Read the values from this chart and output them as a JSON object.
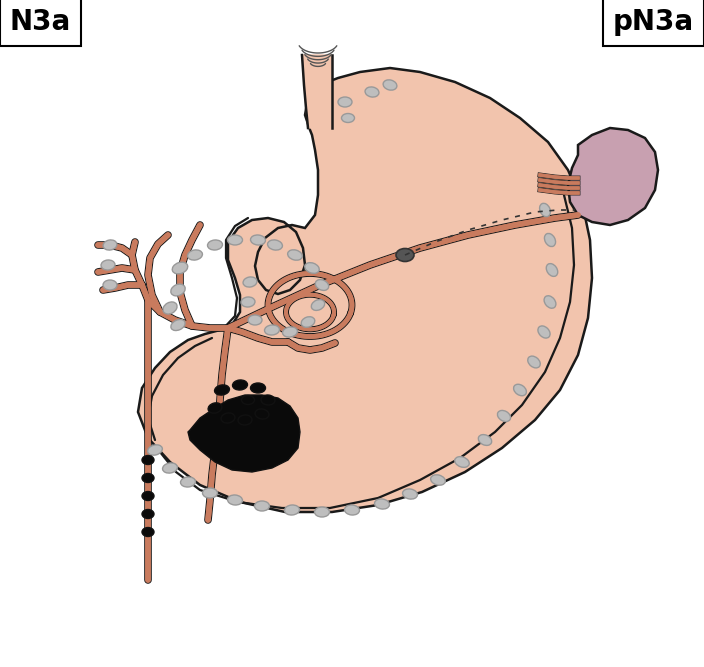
{
  "title_left": "N3a",
  "title_right": "pN3a",
  "stomach_fill": "#F2C4AD",
  "stomach_stroke": "#1a1a1a",
  "vessel_color": "#C97B5E",
  "vessel_stroke": "#1a1a1a",
  "spleen_fill": "#C8A0B0",
  "spleen_stroke": "#1a1a1a",
  "lymph_gray_fill": "#BEBEBE",
  "lymph_gray_stroke": "#888888",
  "lymph_black_fill": "#0a0a0a",
  "lymph_dark_fill": "#555555",
  "bg_color": "#FFFFFF",
  "lw_main": 1.8,
  "lw_vessel": 4.0
}
